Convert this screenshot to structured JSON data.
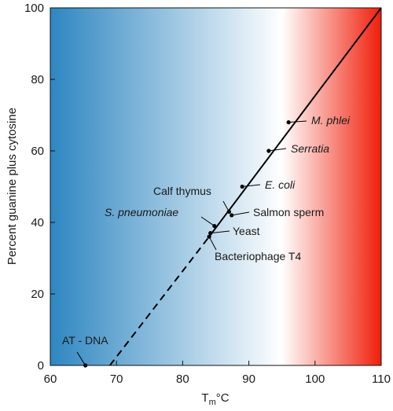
{
  "chart_data": {
    "type": "line",
    "title": "",
    "xlabel": {
      "main": "T",
      "sub": "m",
      "unit": "°C"
    },
    "ylabel": "Percent guanine plus cytosine",
    "xlim": [
      60,
      110
    ],
    "ylim": [
      0,
      100
    ],
    "x_ticks": [
      60,
      70,
      80,
      90,
      100,
      110
    ],
    "y_ticks": [
      0,
      20,
      40,
      60,
      80,
      100
    ],
    "grid": false,
    "background_gradient": {
      "colors": [
        "#2e86c1",
        "#ffffff",
        "#f01e0a"
      ],
      "white_at_x": 95
    },
    "series": [
      {
        "style": "dashed",
        "x": [
          69,
          84
        ],
        "y": [
          0,
          36
        ]
      },
      {
        "style": "solid",
        "x": [
          84,
          110
        ],
        "y": [
          36,
          100
        ]
      }
    ],
    "points": [
      {
        "label": "AT - DNA",
        "x": 65.3,
        "y": 0,
        "italic": false
      },
      {
        "label": "Bacteriophage T4",
        "x": 84,
        "y": 36,
        "italic": false
      },
      {
        "label": "Yeast",
        "x": 84.2,
        "y": 37,
        "italic": false
      },
      {
        "label": "S. pneumoniae",
        "x": 84.8,
        "y": 39,
        "italic": true
      },
      {
        "label": "Calf thymus",
        "x": 87,
        "y": 43,
        "italic": false
      },
      {
        "label": "Salmon sperm",
        "x": 87.4,
        "y": 42,
        "italic": false
      },
      {
        "label": "E. coli",
        "x": 89,
        "y": 50,
        "italic": true
      },
      {
        "label": "Serratia",
        "x": 93,
        "y": 60,
        "italic": true
      },
      {
        "label": "M. phlei",
        "x": 96,
        "y": 68,
        "italic": true
      }
    ]
  }
}
